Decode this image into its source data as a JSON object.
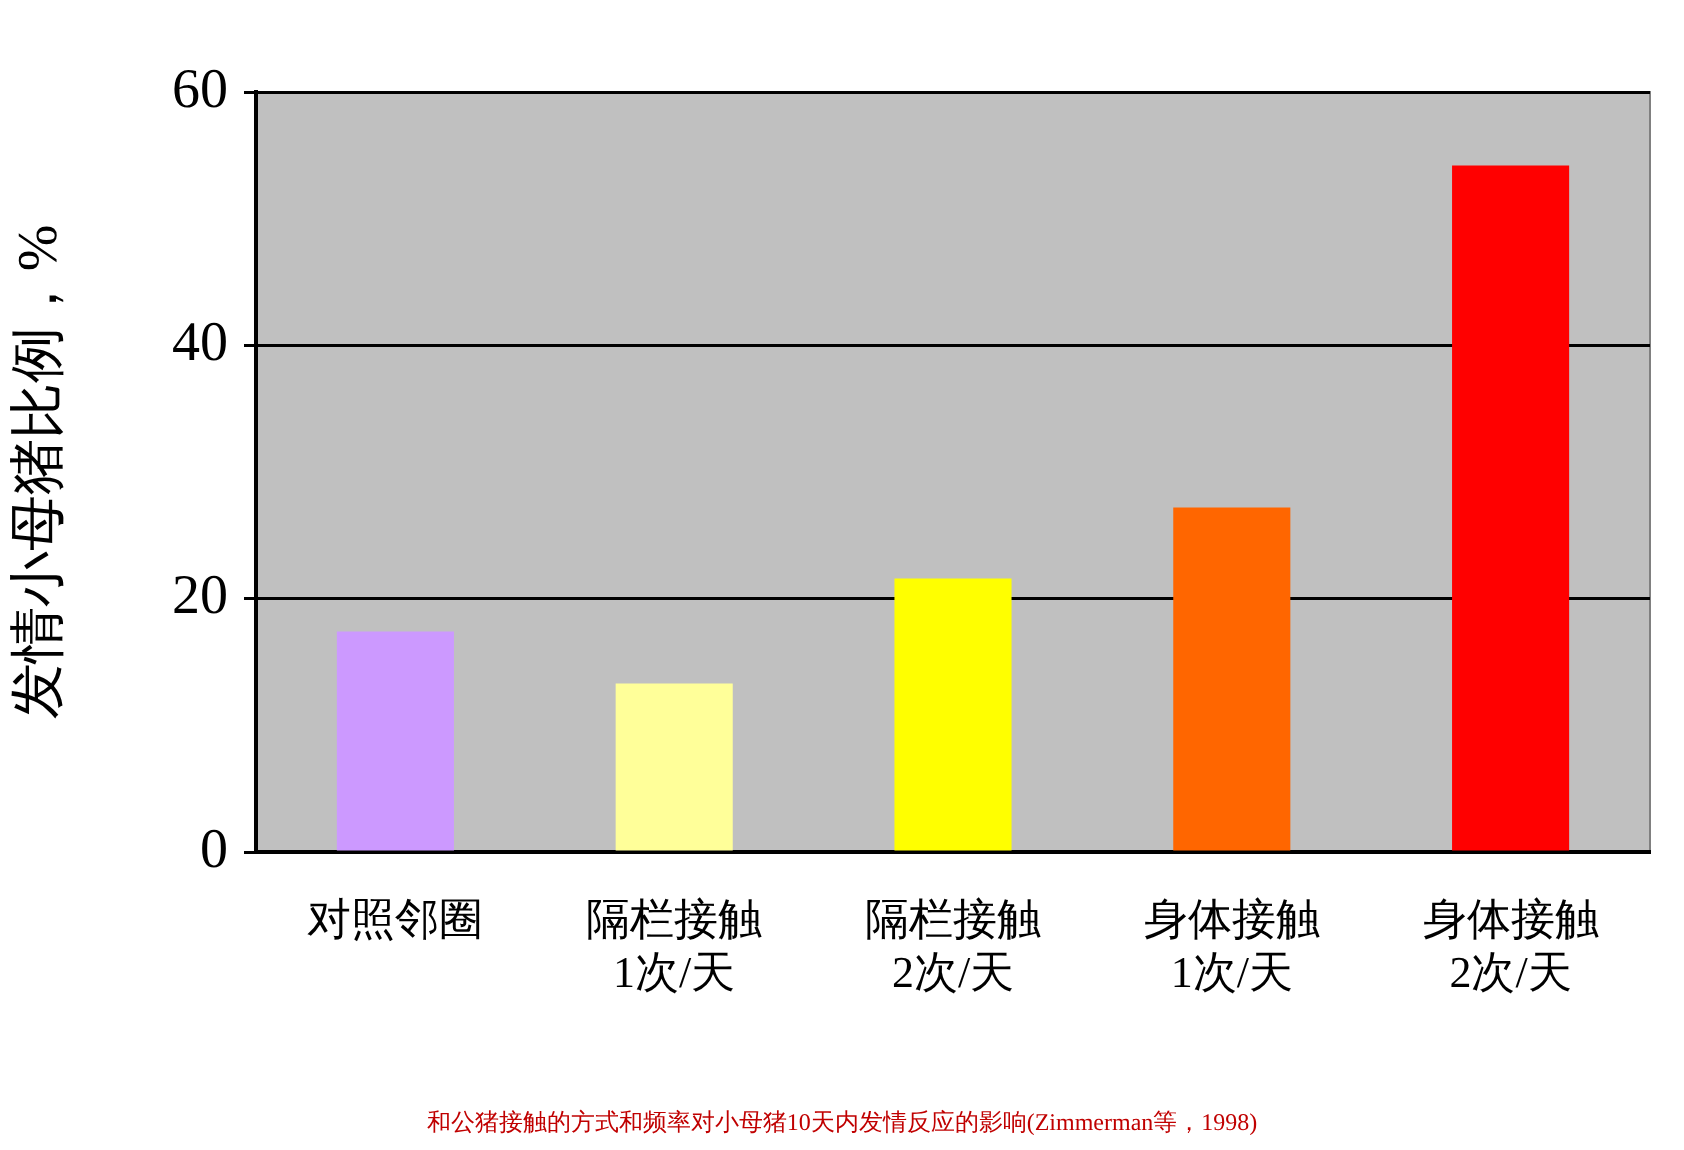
{
  "chart_data": {
    "type": "bar",
    "ylabel": "发情小母猪比例，%",
    "categories": [
      "对照邻圈",
      "隔栏接触\n1次/天",
      "隔栏接触\n2次/天",
      "身体接触\n1次/天",
      "身体接触\n2次/天"
    ],
    "values": [
      17.4,
      13.3,
      21.6,
      27.2,
      54.2
    ],
    "colors": [
      "#cc99ff",
      "#ffff99",
      "#ffff00",
      "#ff6600",
      "#ff0000"
    ],
    "ylim": [
      0,
      60
    ],
    "yticks": [
      0,
      20,
      40,
      60
    ],
    "grid": "y",
    "legend": false,
    "annotations": [
      "和公猪接触的方式和频率对小母猪10天内发情反应的影响(Zimmerman等，1998)"
    ]
  }
}
